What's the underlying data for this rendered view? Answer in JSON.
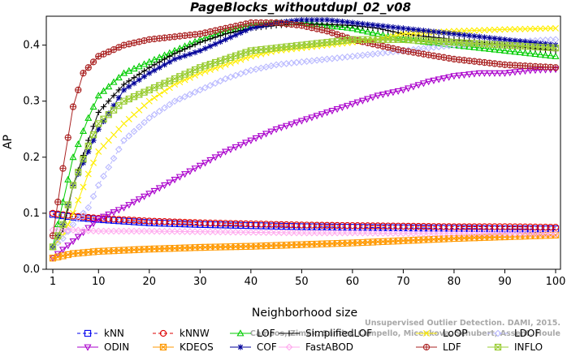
{
  "chart_data": {
    "type": "line",
    "title": "PageBlocks_withoutdupl_02_v08",
    "xlabel": "Neighborhood size",
    "ylabel": "AP",
    "xlim": [
      1,
      100
    ],
    "ylim": [
      0,
      0.44
    ],
    "x_ticks": [
      1,
      10,
      20,
      30,
      40,
      50,
      60,
      70,
      80,
      90,
      100
    ],
    "y_ticks": [
      0.0,
      0.1,
      0.2,
      0.3,
      0.4
    ],
    "grid": false,
    "legend_position": "bottom",
    "watermark": [
      "Campos, Zimek, Sander, Campello, Micenkova, Schubert, Assent, Houle",
      "Unsupervised Outlier Detection. DAMI, 2015."
    ],
    "series": [
      {
        "name": "kNN",
        "color": "#0000ee",
        "marker": "square",
        "dash": "4,3",
        "points": [
          [
            1,
            0.098
          ],
          [
            5,
            0.093
          ],
          [
            10,
            0.089
          ],
          [
            20,
            0.083
          ],
          [
            30,
            0.08
          ],
          [
            40,
            0.078
          ],
          [
            50,
            0.076
          ],
          [
            60,
            0.075
          ],
          [
            70,
            0.074
          ],
          [
            80,
            0.073
          ],
          [
            90,
            0.072
          ],
          [
            100,
            0.072
          ]
        ]
      },
      {
        "name": "kNNW",
        "color": "#dd0000",
        "marker": "circle",
        "dash": "4,3",
        "points": [
          [
            1,
            0.1
          ],
          [
            5,
            0.095
          ],
          [
            10,
            0.091
          ],
          [
            20,
            0.086
          ],
          [
            30,
            0.083
          ],
          [
            40,
            0.081
          ],
          [
            50,
            0.079
          ],
          [
            60,
            0.078
          ],
          [
            70,
            0.077
          ],
          [
            80,
            0.076
          ],
          [
            90,
            0.076
          ],
          [
            100,
            0.075
          ]
        ]
      },
      {
        "name": "LOF",
        "color": "#00cc00",
        "marker": "triangle",
        "dash": "",
        "points": [
          [
            1,
            0.04
          ],
          [
            3,
            0.12
          ],
          [
            5,
            0.2
          ],
          [
            8,
            0.27
          ],
          [
            10,
            0.31
          ],
          [
            15,
            0.35
          ],
          [
            20,
            0.37
          ],
          [
            25,
            0.39
          ],
          [
            30,
            0.41
          ],
          [
            35,
            0.425
          ],
          [
            40,
            0.435
          ],
          [
            45,
            0.44
          ],
          [
            50,
            0.44
          ],
          [
            55,
            0.435
          ],
          [
            60,
            0.43
          ],
          [
            65,
            0.42
          ],
          [
            70,
            0.41
          ],
          [
            80,
            0.4
          ],
          [
            90,
            0.39
          ],
          [
            100,
            0.38
          ]
        ]
      },
      {
        "name": "SimplifiedLOF",
        "color": "#000000",
        "marker": "plus",
        "dash": "",
        "points": [
          [
            1,
            0.04
          ],
          [
            3,
            0.07
          ],
          [
            5,
            0.15
          ],
          [
            8,
            0.23
          ],
          [
            10,
            0.28
          ],
          [
            15,
            0.33
          ],
          [
            20,
            0.36
          ],
          [
            25,
            0.385
          ],
          [
            30,
            0.405
          ],
          [
            35,
            0.42
          ],
          [
            40,
            0.43
          ],
          [
            45,
            0.435
          ],
          [
            50,
            0.438
          ],
          [
            55,
            0.437
          ],
          [
            60,
            0.435
          ],
          [
            65,
            0.43
          ],
          [
            70,
            0.42
          ],
          [
            80,
            0.41
          ],
          [
            90,
            0.4
          ],
          [
            100,
            0.39
          ]
        ]
      },
      {
        "name": "LoOP",
        "color": "#ffee00",
        "marker": "cross",
        "dash": "",
        "points": [
          [
            1,
            0.04
          ],
          [
            3,
            0.06
          ],
          [
            5,
            0.1
          ],
          [
            8,
            0.17
          ],
          [
            10,
            0.21
          ],
          [
            15,
            0.26
          ],
          [
            20,
            0.3
          ],
          [
            25,
            0.33
          ],
          [
            30,
            0.35
          ],
          [
            35,
            0.365
          ],
          [
            40,
            0.38
          ],
          [
            45,
            0.39
          ],
          [
            50,
            0.395
          ],
          [
            55,
            0.4
          ],
          [
            60,
            0.405
          ],
          [
            65,
            0.41
          ],
          [
            70,
            0.42
          ],
          [
            80,
            0.425
          ],
          [
            90,
            0.428
          ],
          [
            100,
            0.43
          ]
        ]
      },
      {
        "name": "LDOF",
        "color": "#b9b9ff",
        "marker": "diamond",
        "dash": "4,3",
        "points": [
          [
            1,
            0.04
          ],
          [
            3,
            0.055
          ],
          [
            5,
            0.08
          ],
          [
            8,
            0.11
          ],
          [
            10,
            0.15
          ],
          [
            15,
            0.23
          ],
          [
            20,
            0.27
          ],
          [
            25,
            0.3
          ],
          [
            30,
            0.32
          ],
          [
            35,
            0.34
          ],
          [
            40,
            0.355
          ],
          [
            45,
            0.365
          ],
          [
            50,
            0.37
          ],
          [
            55,
            0.375
          ],
          [
            60,
            0.38
          ],
          [
            65,
            0.385
          ],
          [
            70,
            0.39
          ],
          [
            80,
            0.4
          ],
          [
            90,
            0.405
          ],
          [
            100,
            0.41
          ]
        ]
      },
      {
        "name": "ODIN",
        "color": "#aa00cc",
        "marker": "triangle-down",
        "dash": "",
        "points": [
          [
            1,
            0.02
          ],
          [
            5,
            0.05
          ],
          [
            10,
            0.09
          ],
          [
            15,
            0.11
          ],
          [
            20,
            0.135
          ],
          [
            25,
            0.16
          ],
          [
            30,
            0.185
          ],
          [
            35,
            0.21
          ],
          [
            40,
            0.23
          ],
          [
            45,
            0.25
          ],
          [
            50,
            0.265
          ],
          [
            55,
            0.28
          ],
          [
            60,
            0.295
          ],
          [
            65,
            0.31
          ],
          [
            70,
            0.32
          ],
          [
            75,
            0.335
          ],
          [
            80,
            0.345
          ],
          [
            85,
            0.35
          ],
          [
            90,
            0.35
          ],
          [
            95,
            0.355
          ],
          [
            100,
            0.357
          ]
        ]
      },
      {
        "name": "KDEOS",
        "color": "#ff9900",
        "marker": "square-x",
        "dash": "",
        "points": [
          [
            1,
            0.02
          ],
          [
            5,
            0.028
          ],
          [
            10,
            0.032
          ],
          [
            20,
            0.036
          ],
          [
            30,
            0.039
          ],
          [
            40,
            0.041
          ],
          [
            50,
            0.044
          ],
          [
            60,
            0.047
          ],
          [
            70,
            0.051
          ],
          [
            80,
            0.055
          ],
          [
            90,
            0.058
          ],
          [
            100,
            0.061
          ]
        ]
      },
      {
        "name": "COF",
        "color": "#000099",
        "marker": "star",
        "dash": "",
        "points": [
          [
            1,
            0.04
          ],
          [
            3,
            0.08
          ],
          [
            5,
            0.15
          ],
          [
            8,
            0.21
          ],
          [
            10,
            0.25
          ],
          [
            15,
            0.32
          ],
          [
            20,
            0.35
          ],
          [
            25,
            0.375
          ],
          [
            30,
            0.39
          ],
          [
            35,
            0.41
          ],
          [
            40,
            0.43
          ],
          [
            45,
            0.44
          ],
          [
            50,
            0.445
          ],
          [
            55,
            0.445
          ],
          [
            60,
            0.44
          ],
          [
            65,
            0.435
          ],
          [
            70,
            0.43
          ],
          [
            80,
            0.42
          ],
          [
            90,
            0.41
          ],
          [
            100,
            0.4
          ]
        ]
      },
      {
        "name": "FastABOD",
        "color": "#ffaaee",
        "marker": "diamond",
        "dash": "",
        "points": [
          [
            1,
            0.07
          ],
          [
            5,
            0.07
          ],
          [
            10,
            0.068
          ],
          [
            20,
            0.068
          ],
          [
            30,
            0.067
          ],
          [
            40,
            0.066
          ],
          [
            50,
            0.065
          ],
          [
            60,
            0.065
          ],
          [
            70,
            0.064
          ],
          [
            80,
            0.064
          ],
          [
            90,
            0.064
          ],
          [
            100,
            0.063
          ]
        ]
      },
      {
        "name": "LDF",
        "color": "#aa2222",
        "marker": "circle-plus",
        "dash": "",
        "points": [
          [
            1,
            0.06
          ],
          [
            3,
            0.18
          ],
          [
            5,
            0.29
          ],
          [
            7,
            0.35
          ],
          [
            10,
            0.38
          ],
          [
            15,
            0.4
          ],
          [
            20,
            0.41
          ],
          [
            25,
            0.415
          ],
          [
            30,
            0.42
          ],
          [
            35,
            0.43
          ],
          [
            40,
            0.44
          ],
          [
            45,
            0.44
          ],
          [
            50,
            0.435
          ],
          [
            55,
            0.425
          ],
          [
            60,
            0.41
          ],
          [
            65,
            0.4
          ],
          [
            70,
            0.39
          ],
          [
            80,
            0.375
          ],
          [
            90,
            0.365
          ],
          [
            100,
            0.36
          ]
        ]
      },
      {
        "name": "INFLO",
        "color": "#99cc33",
        "marker": "square-x",
        "dash": "",
        "points": [
          [
            1,
            0.04
          ],
          [
            3,
            0.08
          ],
          [
            5,
            0.15
          ],
          [
            8,
            0.22
          ],
          [
            10,
            0.26
          ],
          [
            15,
            0.3
          ],
          [
            20,
            0.32
          ],
          [
            25,
            0.34
          ],
          [
            30,
            0.36
          ],
          [
            35,
            0.375
          ],
          [
            40,
            0.39
          ],
          [
            45,
            0.395
          ],
          [
            50,
            0.4
          ],
          [
            55,
            0.405
          ],
          [
            60,
            0.41
          ],
          [
            65,
            0.41
          ],
          [
            70,
            0.41
          ],
          [
            80,
            0.405
          ],
          [
            90,
            0.4
          ],
          [
            100,
            0.395
          ]
        ]
      }
    ]
  }
}
